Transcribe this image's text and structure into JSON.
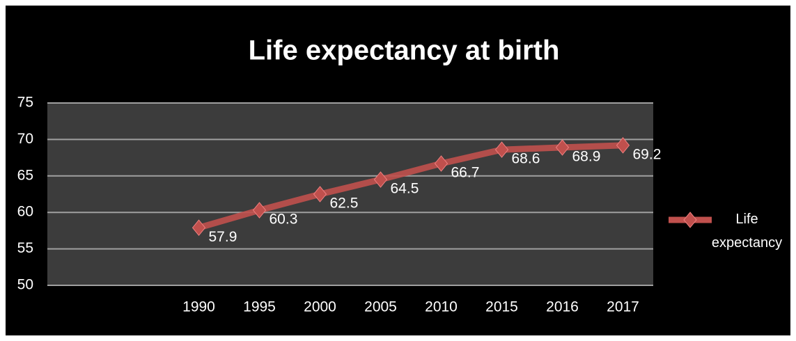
{
  "chart_data": {
    "type": "line",
    "title": "Life expectancy at birth",
    "categories": [
      null,
      null,
      "1990",
      "1995",
      "2000",
      "2005",
      "2010",
      "2015",
      "2016",
      "2017"
    ],
    "series": [
      {
        "name": "Life expectancy",
        "color": "#c0504d",
        "values": [
          null,
          null,
          57.9,
          60.3,
          62.5,
          64.5,
          66.7,
          68.6,
          68.9,
          69.2
        ]
      }
    ],
    "ylim": [
      50,
      75
    ],
    "yticks": [
      50,
      55,
      60,
      65,
      70,
      75
    ],
    "grid": true,
    "legend": "right"
  }
}
